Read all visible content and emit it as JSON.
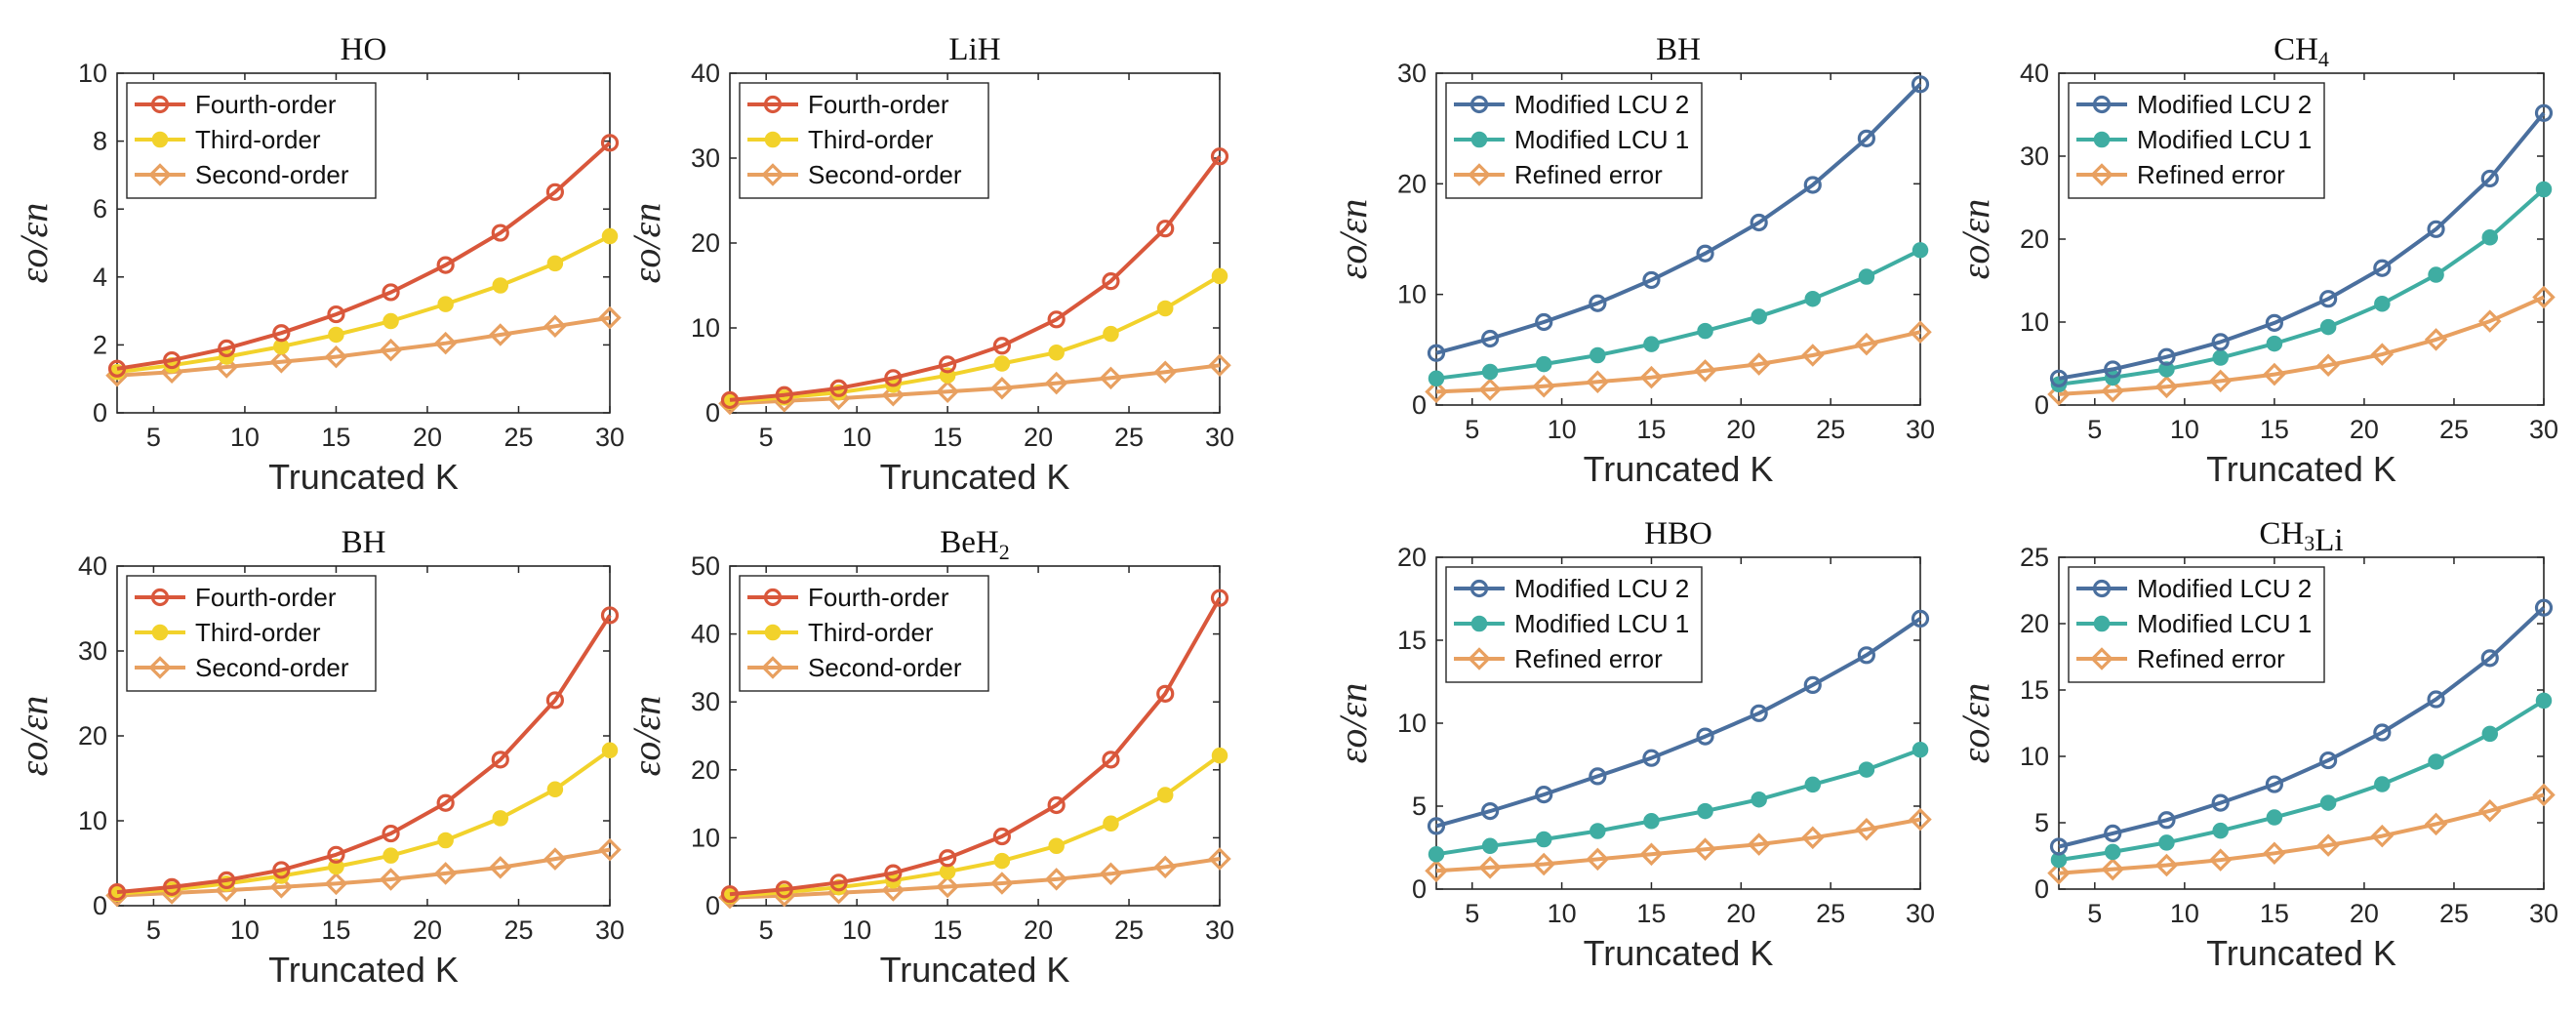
{
  "chart_data": [
    {
      "type": "line",
      "title": "HO",
      "xlabel": "Truncated K",
      "ylabel": "εo/εn",
      "xlim": [
        3,
        30
      ],
      "ylim": [
        0,
        10
      ],
      "xticks": [
        5,
        10,
        15,
        20,
        25,
        30
      ],
      "yticks": [
        0,
        2,
        4,
        6,
        8,
        10
      ],
      "x": [
        3,
        6,
        9,
        12,
        15,
        18,
        21,
        24,
        27,
        30
      ],
      "legend": "top-left",
      "series": [
        {
          "name": "Fourth-order",
          "color": "#D9573B",
          "marker": "circle-open",
          "values": [
            1.3,
            1.55,
            1.9,
            2.35,
            2.9,
            3.55,
            4.35,
            5.3,
            6.5,
            7.95
          ]
        },
        {
          "name": "Third-order",
          "color": "#F2D22B",
          "marker": "circle-filled",
          "values": [
            1.2,
            1.4,
            1.65,
            1.95,
            2.3,
            2.7,
            3.2,
            3.75,
            4.4,
            5.2
          ]
        },
        {
          "name": "Second-order",
          "color": "#E8A060",
          "marker": "diamond-open",
          "values": [
            1.1,
            1.2,
            1.35,
            1.5,
            1.65,
            1.85,
            2.05,
            2.3,
            2.55,
            2.8
          ]
        }
      ]
    },
    {
      "type": "line",
      "title": "LiH",
      "xlabel": "Truncated K",
      "ylabel": "εo/εn",
      "xlim": [
        3,
        30
      ],
      "ylim": [
        0,
        40
      ],
      "xticks": [
        5,
        10,
        15,
        20,
        25,
        30
      ],
      "yticks": [
        0,
        10,
        20,
        30,
        40
      ],
      "x": [
        3,
        6,
        9,
        12,
        15,
        18,
        21,
        24,
        27,
        30
      ],
      "legend": "top-left",
      "series": [
        {
          "name": "Fourth-order",
          "color": "#D9573B",
          "marker": "circle-open",
          "values": [
            1.5,
            2.1,
            2.9,
            4.1,
            5.7,
            7.9,
            11.0,
            15.5,
            21.7,
            30.2
          ]
        },
        {
          "name": "Third-order",
          "color": "#F2D22B",
          "marker": "circle-filled",
          "values": [
            1.3,
            1.8,
            2.4,
            3.3,
            4.4,
            5.8,
            7.1,
            9.3,
            12.3,
            16.1
          ]
        },
        {
          "name": "Second-order",
          "color": "#E8A060",
          "marker": "diamond-open",
          "values": [
            1.1,
            1.4,
            1.7,
            2.1,
            2.5,
            2.9,
            3.5,
            4.1,
            4.8,
            5.6
          ]
        }
      ]
    },
    {
      "type": "line",
      "title": "BH",
      "xlabel": "Truncated K",
      "ylabel": "εo/εn",
      "xlim": [
        3,
        30
      ],
      "ylim": [
        0,
        40
      ],
      "xticks": [
        5,
        10,
        15,
        20,
        25,
        30
      ],
      "yticks": [
        0,
        10,
        20,
        30,
        40
      ],
      "x": [
        3,
        6,
        9,
        12,
        15,
        18,
        21,
        24,
        27,
        30
      ],
      "legend": "top-left",
      "series": [
        {
          "name": "Fourth-order",
          "color": "#D9573B",
          "marker": "circle-open",
          "values": [
            1.6,
            2.2,
            3.0,
            4.2,
            6.0,
            8.5,
            12.1,
            17.2,
            24.2,
            34.2
          ]
        },
        {
          "name": "Third-order",
          "color": "#F2D22B",
          "marker": "circle-filled",
          "values": [
            1.4,
            1.9,
            2.6,
            3.5,
            4.6,
            5.9,
            7.7,
            10.3,
            13.7,
            18.3
          ]
        },
        {
          "name": "Second-order",
          "color": "#E8A060",
          "marker": "diamond-open",
          "values": [
            1.2,
            1.5,
            1.8,
            2.2,
            2.6,
            3.1,
            3.8,
            4.5,
            5.5,
            6.6
          ]
        }
      ]
    },
    {
      "type": "line",
      "title": "BeH₂",
      "xlabel": "Truncated K",
      "ylabel": "εo/εn",
      "xlim": [
        3,
        30
      ],
      "ylim": [
        0,
        50
      ],
      "xticks": [
        5,
        10,
        15,
        20,
        25,
        30
      ],
      "yticks": [
        0,
        10,
        20,
        30,
        40,
        50
      ],
      "x": [
        3,
        6,
        9,
        12,
        15,
        18,
        21,
        24,
        27,
        30
      ],
      "legend": "top-left",
      "series": [
        {
          "name": "Fourth-order",
          "color": "#D9573B",
          "marker": "circle-open",
          "values": [
            1.7,
            2.4,
            3.4,
            4.8,
            7.0,
            10.2,
            14.8,
            21.5,
            31.2,
            45.3
          ]
        },
        {
          "name": "Third-order",
          "color": "#F2D22B",
          "marker": "circle-filled",
          "values": [
            1.4,
            2.0,
            2.7,
            3.7,
            5.0,
            6.6,
            8.8,
            12.1,
            16.3,
            22.1
          ]
        },
        {
          "name": "Second-order",
          "color": "#E8A060",
          "marker": "diamond-open",
          "values": [
            1.2,
            1.5,
            1.9,
            2.3,
            2.8,
            3.3,
            3.9,
            4.7,
            5.7,
            6.9
          ]
        }
      ]
    },
    {
      "type": "line",
      "title": "BH",
      "xlabel": "Truncated K",
      "ylabel": "εo/εn",
      "xlim": [
        3,
        30
      ],
      "ylim": [
        0,
        30
      ],
      "xticks": [
        5,
        10,
        15,
        20,
        25,
        30
      ],
      "yticks": [
        0,
        10,
        20,
        30
      ],
      "x": [
        3,
        6,
        9,
        12,
        15,
        18,
        21,
        24,
        27,
        30
      ],
      "legend": "top-left",
      "series": [
        {
          "name": "Modified LCU 2",
          "color": "#4A6F9E",
          "marker": "circle-open",
          "values": [
            4.7,
            6.0,
            7.5,
            9.2,
            11.3,
            13.7,
            16.5,
            19.9,
            24.1,
            29.0
          ]
        },
        {
          "name": "Modified LCU 1",
          "color": "#3FADA2",
          "marker": "circle-filled",
          "values": [
            2.4,
            3.0,
            3.7,
            4.5,
            5.5,
            6.7,
            8.0,
            9.6,
            11.6,
            14.0
          ]
        },
        {
          "name": "Refined error",
          "color": "#E8A060",
          "marker": "diamond-open",
          "values": [
            1.2,
            1.4,
            1.7,
            2.1,
            2.5,
            3.1,
            3.7,
            4.5,
            5.5,
            6.6
          ]
        }
      ]
    },
    {
      "type": "line",
      "title": "CH₄",
      "xlabel": "Truncated K",
      "ylabel": "εo/εn",
      "xlim": [
        3,
        30
      ],
      "ylim": [
        0,
        40
      ],
      "xticks": [
        5,
        10,
        15,
        20,
        25,
        30
      ],
      "yticks": [
        0,
        10,
        20,
        30,
        40
      ],
      "x": [
        3,
        6,
        9,
        12,
        15,
        18,
        21,
        24,
        27,
        30
      ],
      "legend": "top-left",
      "series": [
        {
          "name": "Modified LCU 2",
          "color": "#4A6F9E",
          "marker": "circle-open",
          "values": [
            3.2,
            4.3,
            5.8,
            7.6,
            9.9,
            12.8,
            16.5,
            21.2,
            27.3,
            35.2
          ]
        },
        {
          "name": "Modified LCU 1",
          "color": "#3FADA2",
          "marker": "circle-filled",
          "values": [
            2.5,
            3.3,
            4.3,
            5.7,
            7.4,
            9.4,
            12.2,
            15.7,
            20.2,
            26.0
          ]
        },
        {
          "name": "Refined error",
          "color": "#E8A060",
          "marker": "diamond-open",
          "values": [
            1.3,
            1.7,
            2.2,
            2.9,
            3.7,
            4.8,
            6.1,
            7.9,
            10.1,
            13.0
          ]
        }
      ]
    },
    {
      "type": "line",
      "title": "HBO",
      "xlabel": "Truncated K",
      "ylabel": "εo/εn",
      "xlim": [
        3,
        30
      ],
      "ylim": [
        0,
        20
      ],
      "xticks": [
        5,
        10,
        15,
        20,
        25,
        30
      ],
      "yticks": [
        0,
        5,
        10,
        15,
        20
      ],
      "x": [
        3,
        6,
        9,
        12,
        15,
        18,
        21,
        24,
        27,
        30
      ],
      "legend": "top-left",
      "series": [
        {
          "name": "Modified LCU 2",
          "color": "#4A6F9E",
          "marker": "circle-open",
          "values": [
            3.8,
            4.7,
            5.7,
            6.8,
            7.9,
            9.2,
            10.6,
            12.3,
            14.1,
            16.3
          ]
        },
        {
          "name": "Modified LCU 1",
          "color": "#3FADA2",
          "marker": "circle-filled",
          "values": [
            2.1,
            2.6,
            3.0,
            3.5,
            4.1,
            4.7,
            5.4,
            6.3,
            7.2,
            8.4
          ]
        },
        {
          "name": "Refined error",
          "color": "#E8A060",
          "marker": "diamond-open",
          "values": [
            1.1,
            1.3,
            1.5,
            1.8,
            2.1,
            2.4,
            2.7,
            3.1,
            3.6,
            4.2
          ]
        }
      ]
    },
    {
      "type": "line",
      "title": "CH₃Li",
      "xlabel": "Truncated K",
      "ylabel": "εo/εn",
      "xlim": [
        3,
        30
      ],
      "ylim": [
        0,
        25
      ],
      "xticks": [
        5,
        10,
        15,
        20,
        25,
        30
      ],
      "yticks": [
        0,
        5,
        10,
        15,
        20,
        25
      ],
      "x": [
        3,
        6,
        9,
        12,
        15,
        18,
        21,
        24,
        27,
        30
      ],
      "legend": "top-left",
      "series": [
        {
          "name": "Modified LCU 2",
          "color": "#4A6F9E",
          "marker": "circle-open",
          "values": [
            3.2,
            4.2,
            5.2,
            6.5,
            7.9,
            9.7,
            11.8,
            14.3,
            17.4,
            21.2
          ]
        },
        {
          "name": "Modified LCU 1",
          "color": "#3FADA2",
          "marker": "circle-filled",
          "values": [
            2.2,
            2.8,
            3.5,
            4.4,
            5.4,
            6.5,
            7.9,
            9.6,
            11.7,
            14.2
          ]
        },
        {
          "name": "Refined error",
          "color": "#E8A060",
          "marker": "diamond-open",
          "values": [
            1.2,
            1.5,
            1.8,
            2.2,
            2.7,
            3.3,
            4.0,
            4.9,
            5.9,
            7.1
          ]
        }
      ]
    }
  ]
}
